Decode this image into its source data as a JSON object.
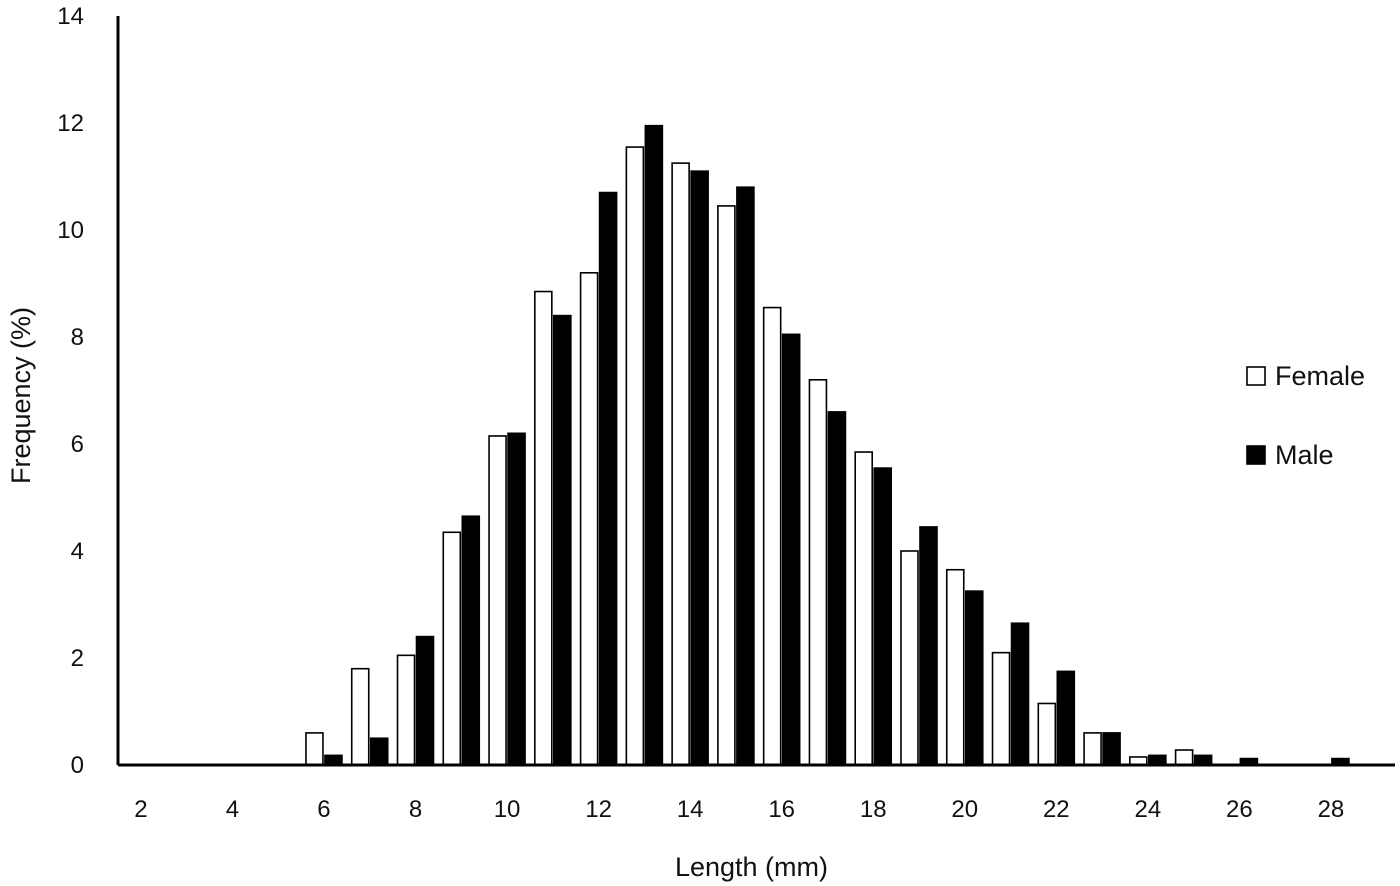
{
  "chart_data": {
    "type": "bar",
    "title": "",
    "xlabel": "Length (mm)",
    "ylabel": "Frequency (%)",
    "x_tick_labels": [
      "2",
      "4",
      "6",
      "8",
      "10",
      "12",
      "14",
      "16",
      "18",
      "20",
      "22",
      "24",
      "26",
      "28"
    ],
    "y_tick_labels": [
      "0",
      "2",
      "4",
      "6",
      "8",
      "10",
      "12",
      "14"
    ],
    "ylim": [
      0,
      14
    ],
    "grid": false,
    "legend_position": "right",
    "categories": [
      2,
      3,
      4,
      5,
      6,
      7,
      8,
      9,
      10,
      11,
      12,
      13,
      14,
      15,
      16,
      17,
      18,
      19,
      20,
      21,
      22,
      23,
      24,
      25,
      26,
      27,
      28
    ],
    "series": [
      {
        "name": "Female",
        "color": "#ffffff",
        "values": [
          0,
          0,
          0,
          0,
          0.6,
          1.8,
          2.05,
          4.35,
          6.15,
          8.85,
          9.2,
          11.55,
          11.25,
          10.45,
          8.55,
          7.2,
          5.85,
          4.0,
          3.65,
          2.1,
          1.15,
          0.6,
          0.15,
          0.28,
          0,
          0,
          0
        ]
      },
      {
        "name": "Male",
        "color": "#000000",
        "values": [
          0,
          0,
          0,
          0,
          0.18,
          0.5,
          2.4,
          4.65,
          6.2,
          8.4,
          10.7,
          11.95,
          11.1,
          10.8,
          8.05,
          6.6,
          5.55,
          4.45,
          3.25,
          2.65,
          1.75,
          0.6,
          0.18,
          0.18,
          0.12,
          0,
          0.12
        ]
      }
    ]
  }
}
